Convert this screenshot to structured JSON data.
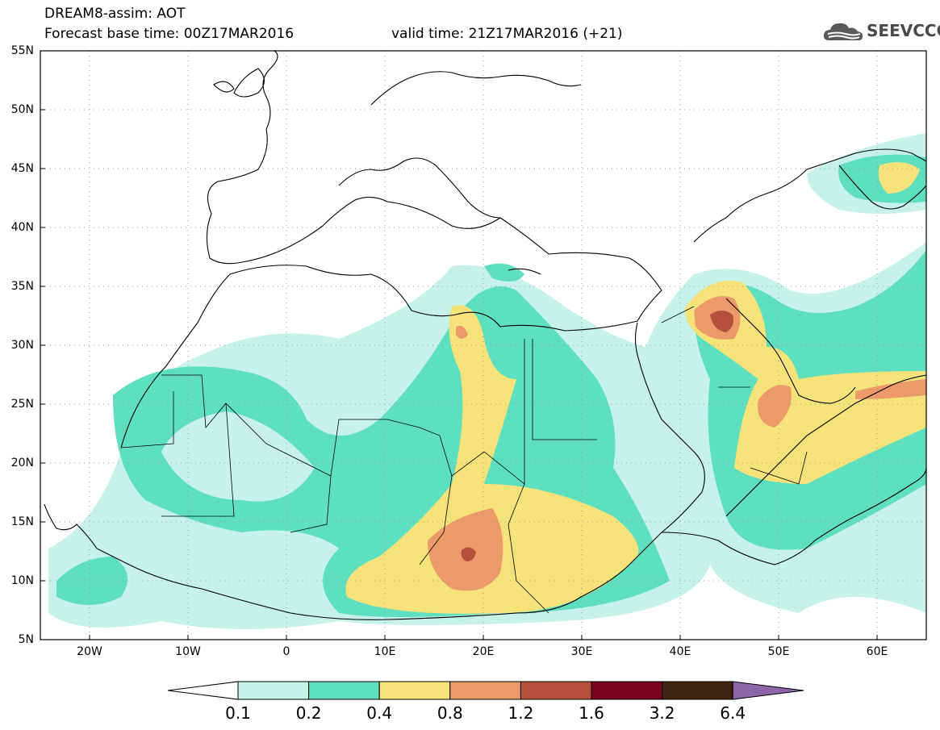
{
  "header": {
    "title": "DREAM8-assim: AOT",
    "base_time": "Forecast base time: 00Z17MAR2016",
    "valid_time": "valid time: 21Z17MAR2016 (+21)",
    "logo_text": "SEEVCCC"
  },
  "map": {
    "lon_range": [
      -25,
      65
    ],
    "lat_range": [
      5,
      55
    ],
    "lat_ticks": [
      "5N",
      "10N",
      "15N",
      "20N",
      "25N",
      "30N",
      "35N",
      "40N",
      "45N",
      "50N",
      "55N"
    ],
    "lon_ticks": [
      "20W",
      "10W",
      "0",
      "10E",
      "20E",
      "30E",
      "40E",
      "50E",
      "60E"
    ],
    "gridlines": true
  },
  "colorbar": {
    "labels": [
      "0.1",
      "0.2",
      "0.4",
      "0.8",
      "1.2",
      "1.6",
      "3.2",
      "6.4"
    ],
    "colors": [
      "#c6f2ea",
      "#5ee0c0",
      "#f5e37a",
      "#ed9a6a",
      "#b5503c",
      "#7a0020",
      "#3b2310",
      "#8c64a8"
    ]
  }
}
